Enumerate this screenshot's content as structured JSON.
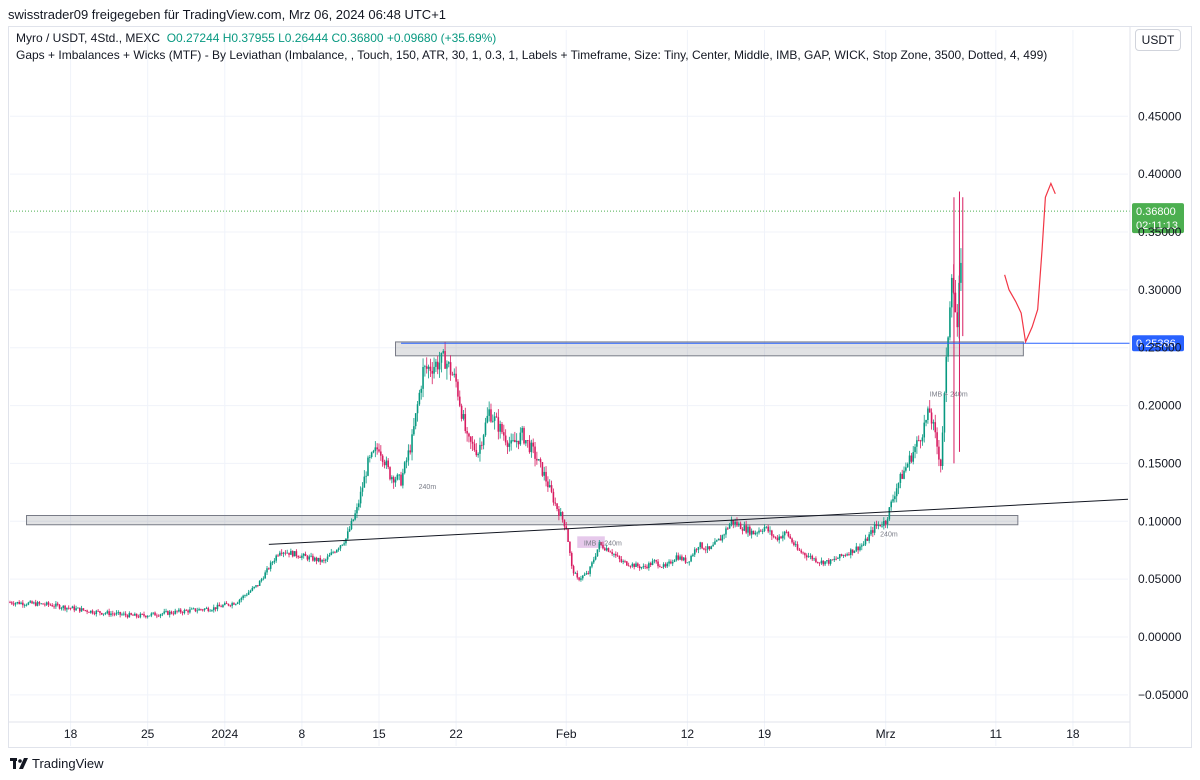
{
  "header": {
    "text": "swisstrader09 freigegeben für TradingView.com, Mrz 06, 2024 06:48 UTC+1"
  },
  "legend": {
    "symbol": "Myro / USDT, 4Std., MEXC",
    "ohlc": "O0.27244  H0.37955  L0.26444  C0.36800  +0.09680 (+35.69%)",
    "indicator": "Gaps + Imbalances + Wicks (MTF) - By Leviathan (Imbalance, , Touch, 150, ATR, 30, 1, 0.3, 1, Labels + Timeframe, Size: Tiny, Center, Middle, IMB, GAP, WICK, Stop Zone, 3500, Dotted, 4, 499)"
  },
  "currency_button": "USDT",
  "footer": {
    "brand": "TradingView"
  },
  "colors": {
    "up": "#089981",
    "down": "#d81b60",
    "price_tag": "#4caf50",
    "level_tag": "#2962ff",
    "drawing": "#f23645"
  },
  "chart_data": {
    "type": "candlestick",
    "title": "Myro / USDT, 4Std., MEXC",
    "ylim": [
      -0.07,
      0.49
    ],
    "y_ticks": [
      0.45,
      0.4,
      0.35,
      0.3,
      0.25,
      0.2,
      0.15,
      0.1,
      0.05,
      0.0,
      -0.05
    ],
    "y_tick_labels": [
      "0.45000",
      "0.40000",
      "0.35000",
      "0.30000",
      "0.25000",
      "0.20000",
      "0.15000",
      "0.10000",
      "0.05000",
      "0.00000",
      "−0.05000"
    ],
    "x_ticks": [
      {
        "label": "18",
        "day": 18
      },
      {
        "label": "25",
        "day": 25
      },
      {
        "label": "2024",
        "day": 32
      },
      {
        "label": "8",
        "day": 39
      },
      {
        "label": "15",
        "day": 46
      },
      {
        "label": "22",
        "day": 53
      },
      {
        "label": "Feb",
        "day": 63
      },
      {
        "label": "12",
        "day": 74
      },
      {
        "label": "19",
        "day": 81
      },
      {
        "label": "Mrz",
        "day": 92
      },
      {
        "label": "11",
        "day": 102
      },
      {
        "label": "18",
        "day": 109
      }
    ],
    "x_range_days": [
      12.5,
      114
    ],
    "price_path": [
      [
        12.5,
        0.03
      ],
      [
        16,
        0.028
      ],
      [
        20,
        0.022
      ],
      [
        24,
        0.018
      ],
      [
        28,
        0.022
      ],
      [
        31,
        0.025
      ],
      [
        33,
        0.03
      ],
      [
        35,
        0.045
      ],
      [
        37,
        0.075
      ],
      [
        39,
        0.07
      ],
      [
        41,
        0.065
      ],
      [
        43,
        0.085
      ],
      [
        44,
        0.11
      ],
      [
        45,
        0.15
      ],
      [
        46,
        0.165
      ],
      [
        47,
        0.14
      ],
      [
        48,
        0.135
      ],
      [
        49,
        0.17
      ],
      [
        50,
        0.23
      ],
      [
        51,
        0.235
      ],
      [
        52,
        0.24
      ],
      [
        53,
        0.22
      ],
      [
        54,
        0.17
      ],
      [
        55,
        0.16
      ],
      [
        56,
        0.195
      ],
      [
        57,
        0.18
      ],
      [
        58,
        0.165
      ],
      [
        59,
        0.175
      ],
      [
        60,
        0.16
      ],
      [
        61,
        0.14
      ],
      [
        62,
        0.115
      ],
      [
        63,
        0.095
      ],
      [
        63.5,
        0.06
      ],
      [
        64,
        0.05
      ],
      [
        65,
        0.055
      ],
      [
        66,
        0.08
      ],
      [
        67,
        0.075
      ],
      [
        68,
        0.065
      ],
      [
        70,
        0.06
      ],
      [
        71,
        0.065
      ],
      [
        72,
        0.06
      ],
      [
        73,
        0.07
      ],
      [
        74,
        0.065
      ],
      [
        75,
        0.08
      ],
      [
        76,
        0.075
      ],
      [
        77,
        0.085
      ],
      [
        78,
        0.1
      ],
      [
        79,
        0.095
      ],
      [
        80,
        0.09
      ],
      [
        81,
        0.095
      ],
      [
        82,
        0.085
      ],
      [
        83,
        0.09
      ],
      [
        84,
        0.075
      ],
      [
        85,
        0.07
      ],
      [
        86,
        0.065
      ],
      [
        87,
        0.065
      ],
      [
        88,
        0.07
      ],
      [
        89,
        0.075
      ],
      [
        90,
        0.08
      ],
      [
        91,
        0.095
      ],
      [
        92,
        0.1
      ],
      [
        93,
        0.13
      ],
      [
        94,
        0.15
      ],
      [
        95,
        0.17
      ],
      [
        96,
        0.195
      ],
      [
        97,
        0.15
      ],
      [
        98,
        0.32
      ],
      [
        98.5,
        0.26
      ],
      [
        99,
        0.368
      ]
    ],
    "zones": [
      {
        "from_day": 14,
        "to_day": 104,
        "low": 0.097,
        "high": 0.105
      },
      {
        "from_day": 47.5,
        "to_day": 104.5,
        "low": 0.243,
        "high": 0.255
      }
    ],
    "imbalance_box": {
      "from_day": 64,
      "to_day": 66.5,
      "low": 0.077,
      "high": 0.087
    },
    "annotations": [
      "IMB + 240m",
      "240m",
      "240m",
      "IMB + 240m"
    ],
    "horizontal_level": {
      "value": 0.25386,
      "label": "0.25386"
    },
    "current_price": {
      "value": 0.368,
      "label": "0.36800",
      "countdown": "02:11:13"
    },
    "trendline": {
      "from": [
        36,
        0.08
      ],
      "to": [
        114,
        0.119
      ]
    },
    "drawn_projection": [
      [
        102.8,
        0.313
      ],
      [
        103.2,
        0.3
      ],
      [
        103.8,
        0.29
      ],
      [
        104.3,
        0.28
      ],
      [
        104.7,
        0.255
      ],
      [
        105.3,
        0.268
      ],
      [
        105.8,
        0.283
      ],
      [
        106.2,
        0.335
      ],
      [
        106.5,
        0.38
      ],
      [
        107,
        0.392
      ],
      [
        107.4,
        0.383
      ]
    ]
  }
}
